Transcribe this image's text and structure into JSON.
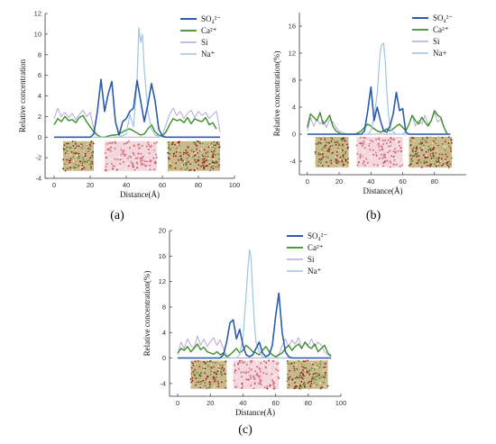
{
  "colors": {
    "so4": "#2a5cab",
    "ca": "#3a8f2a",
    "si": "#b9a6d8",
    "na": "#9ec4e2",
    "axis": "#333333"
  },
  "chart_data": [
    {
      "type": "line",
      "panel_label": "(a)",
      "xlabel": "Distance(Å)",
      "ylabel": "Relative concentration",
      "xlim": [
        -5,
        100
      ],
      "ylim": [
        -4,
        12
      ],
      "xticks": [
        0,
        20,
        40,
        60,
        80,
        100
      ],
      "yticks": [
        -4,
        -2,
        0,
        2,
        4,
        6,
        8,
        10,
        12
      ],
      "legend": [
        "SO₄²⁻",
        "Ca²⁺",
        "Si",
        "Na⁺"
      ],
      "legend_position": "top-right",
      "slabs": [
        [
          5,
          22
        ],
        [
          28,
          57
        ],
        [
          63,
          92
        ]
      ],
      "series": [
        {
          "name": "SO₄²⁻",
          "x": [
            0,
            20,
            22,
            24,
            26,
            28,
            30,
            32,
            34,
            36,
            38,
            40,
            42,
            44,
            46,
            48,
            50,
            52,
            54,
            56,
            58,
            60,
            62,
            64,
            92
          ],
          "y": [
            0,
            0,
            0.3,
            2.5,
            5.6,
            2.5,
            4.2,
            5.4,
            1.5,
            0.2,
            1.5,
            1.8,
            2.5,
            2.8,
            5.5,
            3.5,
            1.5,
            3.2,
            5.2,
            3.5,
            0.8,
            0.1,
            0,
            0,
            0
          ]
        },
        {
          "name": "Ca²⁺",
          "x": [
            0,
            2,
            4,
            6,
            8,
            10,
            12,
            14,
            16,
            18,
            20,
            22,
            24,
            26,
            28,
            30,
            32,
            34,
            36,
            38,
            40,
            42,
            44,
            46,
            48,
            50,
            52,
            54,
            56,
            58,
            60,
            62,
            64,
            66,
            68,
            70,
            72,
            74,
            76,
            78,
            80,
            82,
            84,
            86,
            88,
            90
          ],
          "y": [
            1.2,
            1.8,
            1.5,
            2.0,
            1.6,
            1.7,
            1.4,
            1.9,
            2.1,
            1.5,
            1.0,
            0.5,
            0.2,
            0,
            0,
            0.1,
            0.2,
            0.2,
            0.3,
            0.5,
            0.7,
            0.8,
            0.6,
            0.4,
            0.2,
            0.3,
            0.8,
            1.2,
            0.5,
            0.2,
            0.1,
            0.5,
            1.2,
            1.8,
            1.6,
            1.7,
            1.4,
            1.9,
            1.3,
            1.8,
            1.6,
            1.5,
            1.9,
            1.2,
            1.4,
            0.8
          ]
        },
        {
          "name": "Si",
          "x": [
            0,
            2,
            4,
            6,
            8,
            10,
            12,
            14,
            16,
            18,
            20,
            22,
            24,
            26,
            28,
            30,
            32,
            34,
            36,
            38,
            40,
            42,
            44,
            46,
            48,
            50,
            52,
            54,
            56,
            58,
            60,
            62,
            64,
            66,
            68,
            70,
            72,
            74,
            76,
            78,
            80,
            82,
            84,
            86,
            88,
            90,
            92
          ],
          "y": [
            1.8,
            2.8,
            2.0,
            2.4,
            1.9,
            2.3,
            1.7,
            2.2,
            2.6,
            2.0,
            2.4,
            0.8,
            0.2,
            0,
            0,
            0,
            0,
            0,
            0,
            0,
            0,
            0,
            0,
            0,
            0,
            0,
            0,
            0,
            0,
            0,
            0.2,
            1.2,
            2.2,
            2.8,
            2.1,
            2.5,
            1.8,
            2.3,
            2.6,
            1.9,
            2.5,
            2.1,
            2.4,
            1.8,
            2.2,
            2.5,
            0.5
          ]
        },
        {
          "name": "Na⁺",
          "x": [
            0,
            36,
            40,
            42,
            44,
            46,
            47,
            48,
            49,
            50,
            52,
            54,
            56,
            60,
            92
          ],
          "y": [
            0,
            0,
            0.3,
            2.2,
            1.0,
            5.5,
            10.6,
            9.2,
            10.0,
            6.5,
            2.5,
            0.8,
            0.2,
            0,
            0
          ]
        }
      ]
    },
    {
      "type": "line",
      "panel_label": "(b)",
      "xlabel": "Distance(Å)",
      "ylabel": "Relative concentration(%)",
      "xlim": [
        -5,
        100
      ],
      "ylim": [
        -6,
        18
      ],
      "xticks": [
        0,
        20,
        40,
        60,
        80
      ],
      "yticks": [
        -4,
        0,
        4,
        8,
        12,
        16
      ],
      "legend": [
        "SO₄²⁻",
        "Ca²⁺",
        "Si",
        "Na+"
      ],
      "legend_position": "top-right",
      "slabs": [
        [
          5,
          26
        ],
        [
          31,
          60
        ],
        [
          64,
          91
        ]
      ],
      "series": [
        {
          "name": "SO₄²⁻",
          "x": [
            0,
            34,
            36,
            38,
            40,
            42,
            44,
            46,
            48,
            50,
            52,
            54,
            56,
            58,
            60,
            62,
            64,
            90
          ],
          "y": [
            0,
            0,
            0.5,
            3.5,
            7.0,
            2.0,
            4.0,
            2.0,
            0.5,
            0.3,
            1.2,
            3.0,
            6.2,
            3.5,
            3.8,
            0.3,
            0,
            0
          ]
        },
        {
          "name": "Ca²⁺",
          "x": [
            0,
            2,
            4,
            6,
            8,
            10,
            12,
            14,
            16,
            18,
            20,
            22,
            24,
            26,
            28,
            30,
            32,
            34,
            36,
            38,
            40,
            42,
            44,
            46,
            48,
            50,
            52,
            54,
            56,
            58,
            60,
            62,
            64,
            66,
            68,
            70,
            72,
            74,
            76,
            78,
            80,
            82,
            84,
            86,
            88
          ],
          "y": [
            1.0,
            3.0,
            2.5,
            2.0,
            3.2,
            1.5,
            2.0,
            2.8,
            1.2,
            0.5,
            0.2,
            0,
            0,
            0,
            0,
            0,
            0.2,
            0.5,
            1.0,
            1.5,
            1.2,
            0.8,
            0.5,
            0.3,
            0.5,
            0.8,
            0.5,
            0.8,
            1.2,
            1.5,
            1.0,
            0.5,
            1.5,
            2.8,
            2.0,
            1.5,
            2.5,
            1.8,
            1.2,
            2.0,
            3.5,
            2.8,
            2.5,
            1.0,
            0
          ]
        },
        {
          "name": "Si",
          "x": [
            0,
            2,
            4,
            6,
            8,
            10,
            12,
            14,
            16,
            18,
            20,
            22,
            24,
            26,
            60,
            62,
            64,
            66,
            68,
            70,
            72,
            74,
            76,
            78,
            80,
            82,
            84,
            86,
            88
          ],
          "y": [
            0.5,
            2.5,
            1.2,
            2.2,
            1.5,
            2.0,
            1.0,
            2.2,
            1.8,
            1.0,
            0.5,
            0.3,
            0,
            0,
            0,
            0.5,
            1.5,
            2.8,
            1.2,
            2.0,
            1.5,
            2.8,
            1.5,
            2.0,
            3.2,
            1.8,
            2.2,
            1.0,
            0.2
          ]
        },
        {
          "name": "Na+",
          "x": [
            0,
            38,
            40,
            42,
            44,
            45,
            46,
            47,
            48,
            49,
            50,
            51,
            52,
            54,
            56,
            90
          ],
          "y": [
            0,
            0,
            0.5,
            2.5,
            6.0,
            9.5,
            12.5,
            13.3,
            13.5,
            11.0,
            6.5,
            3.0,
            1.2,
            0.3,
            0,
            0
          ]
        }
      ]
    },
    {
      "type": "line",
      "panel_label": "(c)",
      "xlabel": "Distance(Å)",
      "ylabel": "Relative concentration(%)",
      "xlim": [
        -5,
        100
      ],
      "ylim": [
        -6,
        20
      ],
      "xticks": [
        0,
        20,
        40,
        60,
        80,
        100
      ],
      "yticks": [
        -4,
        0,
        4,
        8,
        12,
        16,
        20
      ],
      "legend": [
        "SO₄²⁻",
        "Ca²⁺",
        "Si",
        "Na⁺"
      ],
      "legend_position": "top-right",
      "slabs": [
        [
          8,
          30
        ],
        [
          34,
          62
        ],
        [
          67,
          92
        ]
      ],
      "series": [
        {
          "name": "SO₄²⁻",
          "x": [
            0,
            26,
            28,
            30,
            32,
            34,
            36,
            38,
            40,
            42,
            44,
            46,
            48,
            50,
            52,
            54,
            56,
            58,
            60,
            62,
            64,
            66,
            68,
            70,
            94
          ],
          "y": [
            0,
            0,
            0.5,
            2.5,
            5.5,
            6.0,
            3.0,
            4.5,
            2.0,
            0.5,
            0.2,
            0.5,
            1.5,
            2.5,
            0.8,
            0.2,
            0.5,
            2.0,
            6.5,
            10.2,
            4.0,
            1.0,
            0.2,
            0,
            0
          ]
        },
        {
          "name": "Ca²⁺",
          "x": [
            0,
            2,
            4,
            6,
            8,
            10,
            12,
            14,
            16,
            18,
            20,
            22,
            24,
            26,
            28,
            30,
            32,
            34,
            36,
            38,
            40,
            42,
            44,
            46,
            48,
            50,
            52,
            54,
            56,
            58,
            60,
            62,
            64,
            66,
            68,
            70,
            72,
            74,
            76,
            78,
            80,
            82,
            84,
            86,
            88,
            90,
            92,
            94
          ],
          "y": [
            0.8,
            1.5,
            1.2,
            1.8,
            1.0,
            1.5,
            2.2,
            1.3,
            1.7,
            1.0,
            0.8,
            0.6,
            1.0,
            0.5,
            0.8,
            0.2,
            0.5,
            1.0,
            1.5,
            0.8,
            1.2,
            2.0,
            1.5,
            1.0,
            0.8,
            0.5,
            1.2,
            1.8,
            1.0,
            0.5,
            0.2,
            0.5,
            0.8,
            1.5,
            2.0,
            1.2,
            1.8,
            2.2,
            1.5,
            2.5,
            1.8,
            1.5,
            2.2,
            1.0,
            1.5,
            2.0,
            0.8,
            0.3
          ]
        },
        {
          "name": "Si",
          "x": [
            0,
            2,
            4,
            6,
            8,
            10,
            12,
            14,
            16,
            18,
            20,
            22,
            24,
            26,
            28,
            30,
            32,
            60,
            62,
            64,
            66,
            68,
            70,
            72,
            74,
            76,
            78,
            80,
            82,
            84,
            86,
            88,
            90,
            92,
            94
          ],
          "y": [
            0.5,
            2.5,
            1.5,
            3.0,
            2.0,
            1.5,
            3.5,
            2.0,
            3.0,
            1.8,
            2.5,
            3.2,
            2.0,
            2.8,
            1.5,
            0.5,
            0,
            0,
            0.5,
            2.0,
            3.0,
            1.8,
            2.8,
            2.2,
            3.2,
            1.5,
            2.5,
            2.0,
            3.0,
            1.8,
            2.5,
            2.0,
            1.0,
            0.5,
            0.2
          ]
        },
        {
          "name": "Na⁺",
          "x": [
            0,
            36,
            38,
            40,
            42,
            43,
            44,
            45,
            46,
            47,
            48,
            50,
            52,
            54,
            94
          ],
          "y": [
            0,
            0,
            0.5,
            3.0,
            10.0,
            14.0,
            17.0,
            15.5,
            10.0,
            5.5,
            2.5,
            1.0,
            0.2,
            0,
            0
          ]
        }
      ]
    }
  ]
}
